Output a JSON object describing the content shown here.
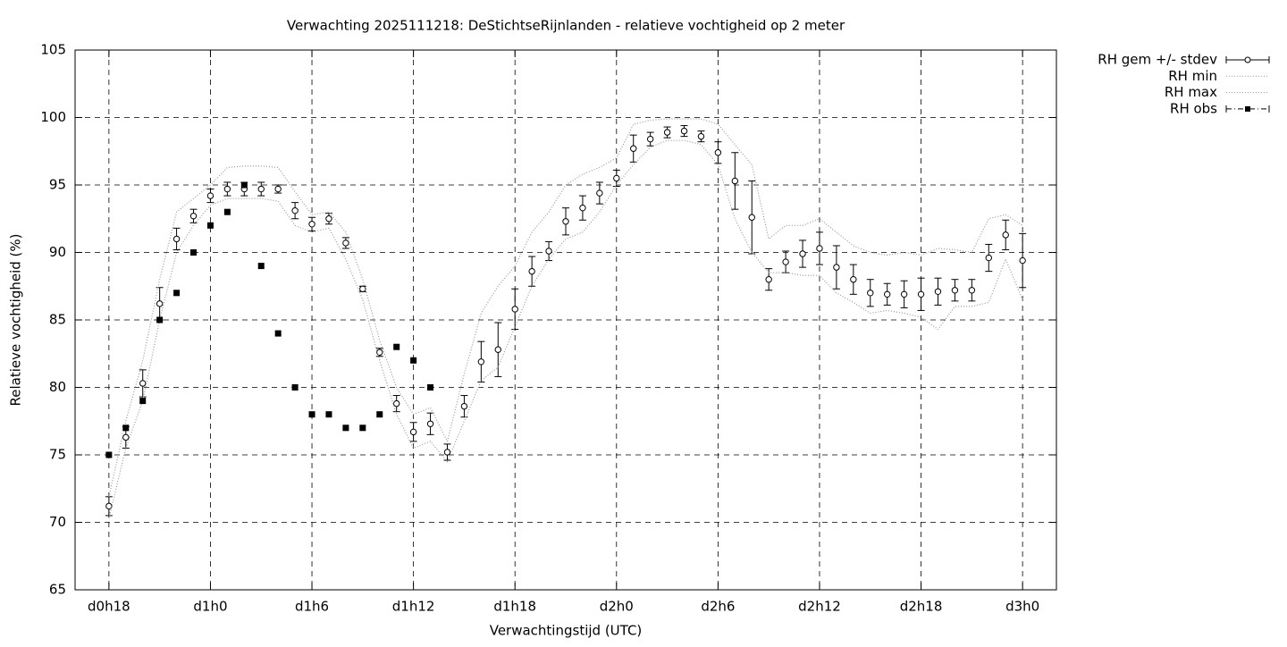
{
  "chart_data": {
    "type": "errorbar-line",
    "title": "Verwachting 2025111218: DeStichtseRijnlanden - relatieve vochtigheid op 2 meter",
    "xlabel": "Verwachtingstijd (UTC)",
    "ylabel": "Relatieve vochtigheid (%)",
    "xlim": [
      16,
      74
    ],
    "xticks": [
      {
        "value": 18,
        "label": "d0h18"
      },
      {
        "value": 24,
        "label": "d1h0"
      },
      {
        "value": 30,
        "label": "d1h6"
      },
      {
        "value": 36,
        "label": "d1h12"
      },
      {
        "value": 42,
        "label": "d1h18"
      },
      {
        "value": 48,
        "label": "d2h0"
      },
      {
        "value": 54,
        "label": "d2h6"
      },
      {
        "value": 60,
        "label": "d2h12"
      },
      {
        "value": 66,
        "label": "d2h18"
      },
      {
        "value": 72,
        "label": "d3h0"
      }
    ],
    "ylim": [
      65,
      105
    ],
    "yticks": [
      65,
      70,
      75,
      80,
      85,
      90,
      95,
      100,
      105
    ],
    "grid": true,
    "legend": "outside-top-right",
    "series": [
      {
        "name": "RH gem +/- stdev",
        "style": "errorbars",
        "color": "#000000",
        "x": [
          18,
          19,
          20,
          21,
          22,
          23,
          24,
          25,
          26,
          27,
          28,
          29,
          30,
          31,
          32,
          33,
          34,
          35,
          36,
          37,
          38,
          39,
          40,
          41,
          42,
          43,
          44,
          45,
          46,
          47,
          48,
          49,
          50,
          51,
          52,
          53,
          54,
          55,
          56,
          57,
          58,
          59,
          60,
          61,
          62,
          63,
          64,
          65,
          66,
          67,
          68,
          69,
          70,
          71,
          72
        ],
        "values": [
          71.2,
          76.3,
          80.3,
          86.2,
          91.0,
          92.7,
          94.2,
          94.7,
          94.7,
          94.7,
          94.7,
          93.1,
          92.1,
          92.5,
          90.7,
          87.3,
          82.6,
          78.8,
          76.7,
          77.3,
          75.2,
          78.6,
          81.9,
          82.8,
          85.8,
          88.6,
          90.1,
          92.3,
          93.3,
          94.4,
          95.5,
          97.7,
          98.4,
          98.9,
          99.0,
          98.6,
          97.4,
          95.3,
          92.6,
          88.0,
          89.3,
          89.9,
          90.3,
          88.9,
          88.0,
          87.0,
          86.9,
          86.9,
          86.9,
          87.1,
          87.2,
          87.2,
          89.6,
          91.3,
          89.4
        ],
        "errors": [
          0.7,
          0.8,
          1.0,
          1.2,
          0.8,
          0.5,
          0.5,
          0.5,
          0.5,
          0.5,
          0.3,
          0.6,
          0.5,
          0.4,
          0.4,
          0.2,
          0.3,
          0.6,
          0.7,
          0.8,
          0.6,
          0.8,
          1.5,
          2.0,
          1.5,
          1.1,
          0.7,
          1.0,
          0.9,
          0.8,
          0.6,
          1.0,
          0.5,
          0.4,
          0.4,
          0.4,
          0.8,
          2.1,
          2.7,
          0.8,
          0.8,
          1.0,
          1.2,
          1.6,
          1.1,
          1.0,
          0.8,
          1.0,
          1.2,
          1.0,
          0.8,
          0.8,
          1.0,
          1.1,
          2.0
        ]
      },
      {
        "name": "RH min",
        "style": "dotted",
        "color": "#999999",
        "x": [
          18,
          19,
          20,
          21,
          22,
          23,
          24,
          25,
          26,
          27,
          28,
          29,
          30,
          31,
          32,
          33,
          34,
          35,
          36,
          37,
          38,
          39,
          40,
          41,
          42,
          43,
          44,
          45,
          46,
          47,
          48,
          49,
          50,
          51,
          52,
          53,
          54,
          55,
          56,
          57,
          58,
          59,
          60,
          61,
          62,
          63,
          64,
          65,
          66,
          67,
          68,
          69,
          70,
          71,
          72
        ],
        "values": [
          70.3,
          75.5,
          79,
          85,
          90,
          92,
          93.5,
          94,
          94,
          94,
          93.8,
          92,
          91.5,
          91.8,
          89.5,
          86.5,
          82,
          78,
          75.5,
          76,
          74.5,
          77.5,
          80.5,
          81.5,
          84.5,
          87.5,
          89.5,
          91,
          91.5,
          93,
          95,
          96.5,
          97.8,
          98.3,
          98.3,
          98,
          96.5,
          92.5,
          90,
          88.5,
          88.5,
          88.3,
          88.3,
          87,
          86.3,
          85.5,
          85.7,
          85.5,
          85.2,
          84.3,
          86,
          86,
          86.3,
          89.5,
          86.5
        ]
      },
      {
        "name": "RH max",
        "style": "dotted",
        "color": "#999999",
        "x": [
          18,
          19,
          20,
          21,
          22,
          23,
          24,
          25,
          26,
          27,
          28,
          29,
          30,
          31,
          32,
          33,
          34,
          35,
          36,
          37,
          38,
          39,
          40,
          41,
          42,
          43,
          44,
          45,
          46,
          47,
          48,
          49,
          50,
          51,
          52,
          53,
          54,
          55,
          56,
          57,
          58,
          59,
          60,
          61,
          62,
          63,
          64,
          65,
          66,
          67,
          68,
          69,
          70,
          71,
          72
        ],
        "values": [
          71.9,
          77.5,
          82,
          88,
          93,
          94,
          95,
          96.3,
          96.4,
          96.4,
          96.3,
          94.5,
          92.8,
          93,
          91.5,
          88,
          83.5,
          80,
          78,
          78.5,
          76,
          81,
          85.5,
          87.5,
          89,
          91.5,
          93,
          95,
          95.8,
          96.3,
          97,
          99.5,
          99.8,
          99.9,
          99.9,
          99.9,
          99.5,
          98,
          96.5,
          91,
          92,
          92,
          92.5,
          91.5,
          90.5,
          90,
          89.8,
          90,
          89.8,
          90.3,
          90.2,
          90,
          92.5,
          92.8,
          92
        ]
      },
      {
        "name": "RH obs",
        "style": "points",
        "color": "#000000",
        "x": [
          18,
          19,
          20,
          21,
          22,
          23,
          24,
          25,
          26,
          27,
          28,
          29,
          30,
          31,
          32,
          33,
          34,
          35,
          36,
          37
        ],
        "values": [
          75,
          77,
          79,
          85,
          87,
          90,
          92,
          93,
          95,
          89,
          84,
          80,
          78,
          78,
          77,
          77,
          78,
          83,
          82,
          80
        ]
      }
    ]
  }
}
